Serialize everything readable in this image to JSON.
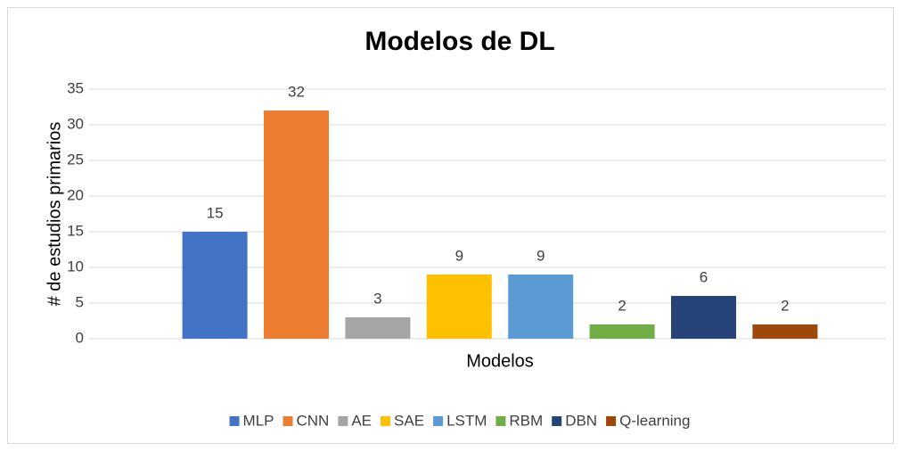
{
  "chart_data": {
    "type": "bar",
    "title": "Modelos de DL",
    "x_label": "Modelos",
    "y_label": "# de estudios primarios",
    "categories": [
      null
    ],
    "series": [
      {
        "name": "MLP",
        "color": "#4472c4",
        "values": [
          15
        ]
      },
      {
        "name": "CNN",
        "color": "#ed7d31",
        "values": [
          32
        ]
      },
      {
        "name": "AE",
        "color": "#a5a5a5",
        "values": [
          3
        ]
      },
      {
        "name": "SAE",
        "color": "#ffc000",
        "values": [
          9
        ]
      },
      {
        "name": "LSTM",
        "color": "#5b9bd5",
        "values": [
          9
        ]
      },
      {
        "name": "RBM",
        "color": "#70ad47",
        "values": [
          2
        ]
      },
      {
        "name": "DBN",
        "color": "#264478",
        "values": [
          6
        ]
      },
      {
        "name": "Q-learning",
        "color": "#9e480e",
        "values": [
          2
        ]
      }
    ],
    "ylim": [
      0,
      35
    ],
    "yticks": [
      0,
      5,
      10,
      15,
      20,
      25,
      30,
      35
    ],
    "grid": true,
    "legend": "bottom"
  }
}
